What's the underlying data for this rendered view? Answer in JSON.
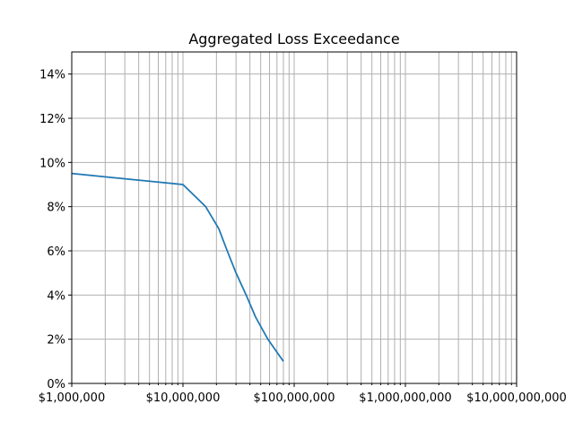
{
  "chart_data": {
    "type": "line",
    "title": "Aggregated Loss Exceedance",
    "xlabel": "",
    "ylabel": "",
    "x_scale": "log",
    "xlim": [
      1000000,
      10000000000
    ],
    "ylim": [
      0,
      0.15
    ],
    "grid": "major-and-minor",
    "x_ticks": [
      {
        "value": 1000000,
        "label": "$1,000,000"
      },
      {
        "value": 10000000,
        "label": "$10,000,000"
      },
      {
        "value": 100000000,
        "label": "$100,000,000"
      },
      {
        "value": 1000000000,
        "label": "$1,000,000,000"
      },
      {
        "value": 10000000000,
        "label": "$10,000,000,000"
      }
    ],
    "y_ticks": [
      {
        "value": 0,
        "label": "0%"
      },
      {
        "value": 0.02,
        "label": "2%"
      },
      {
        "value": 0.04,
        "label": "4%"
      },
      {
        "value": 0.06,
        "label": "6%"
      },
      {
        "value": 0.08,
        "label": "8%"
      },
      {
        "value": 0.1,
        "label": "10%"
      },
      {
        "value": 0.12,
        "label": "12%"
      },
      {
        "value": 0.14,
        "label": "14%"
      }
    ],
    "series": [
      {
        "color": "#1f77b4",
        "x": [
          1000000,
          10000000,
          16000000,
          21000000,
          25000000,
          30000000,
          37000000,
          45000000,
          58000000,
          80000000
        ],
        "y": [
          0.095,
          0.09,
          0.08,
          0.07,
          0.06,
          0.05,
          0.04,
          0.03,
          0.02,
          0.01
        ]
      }
    ]
  }
}
